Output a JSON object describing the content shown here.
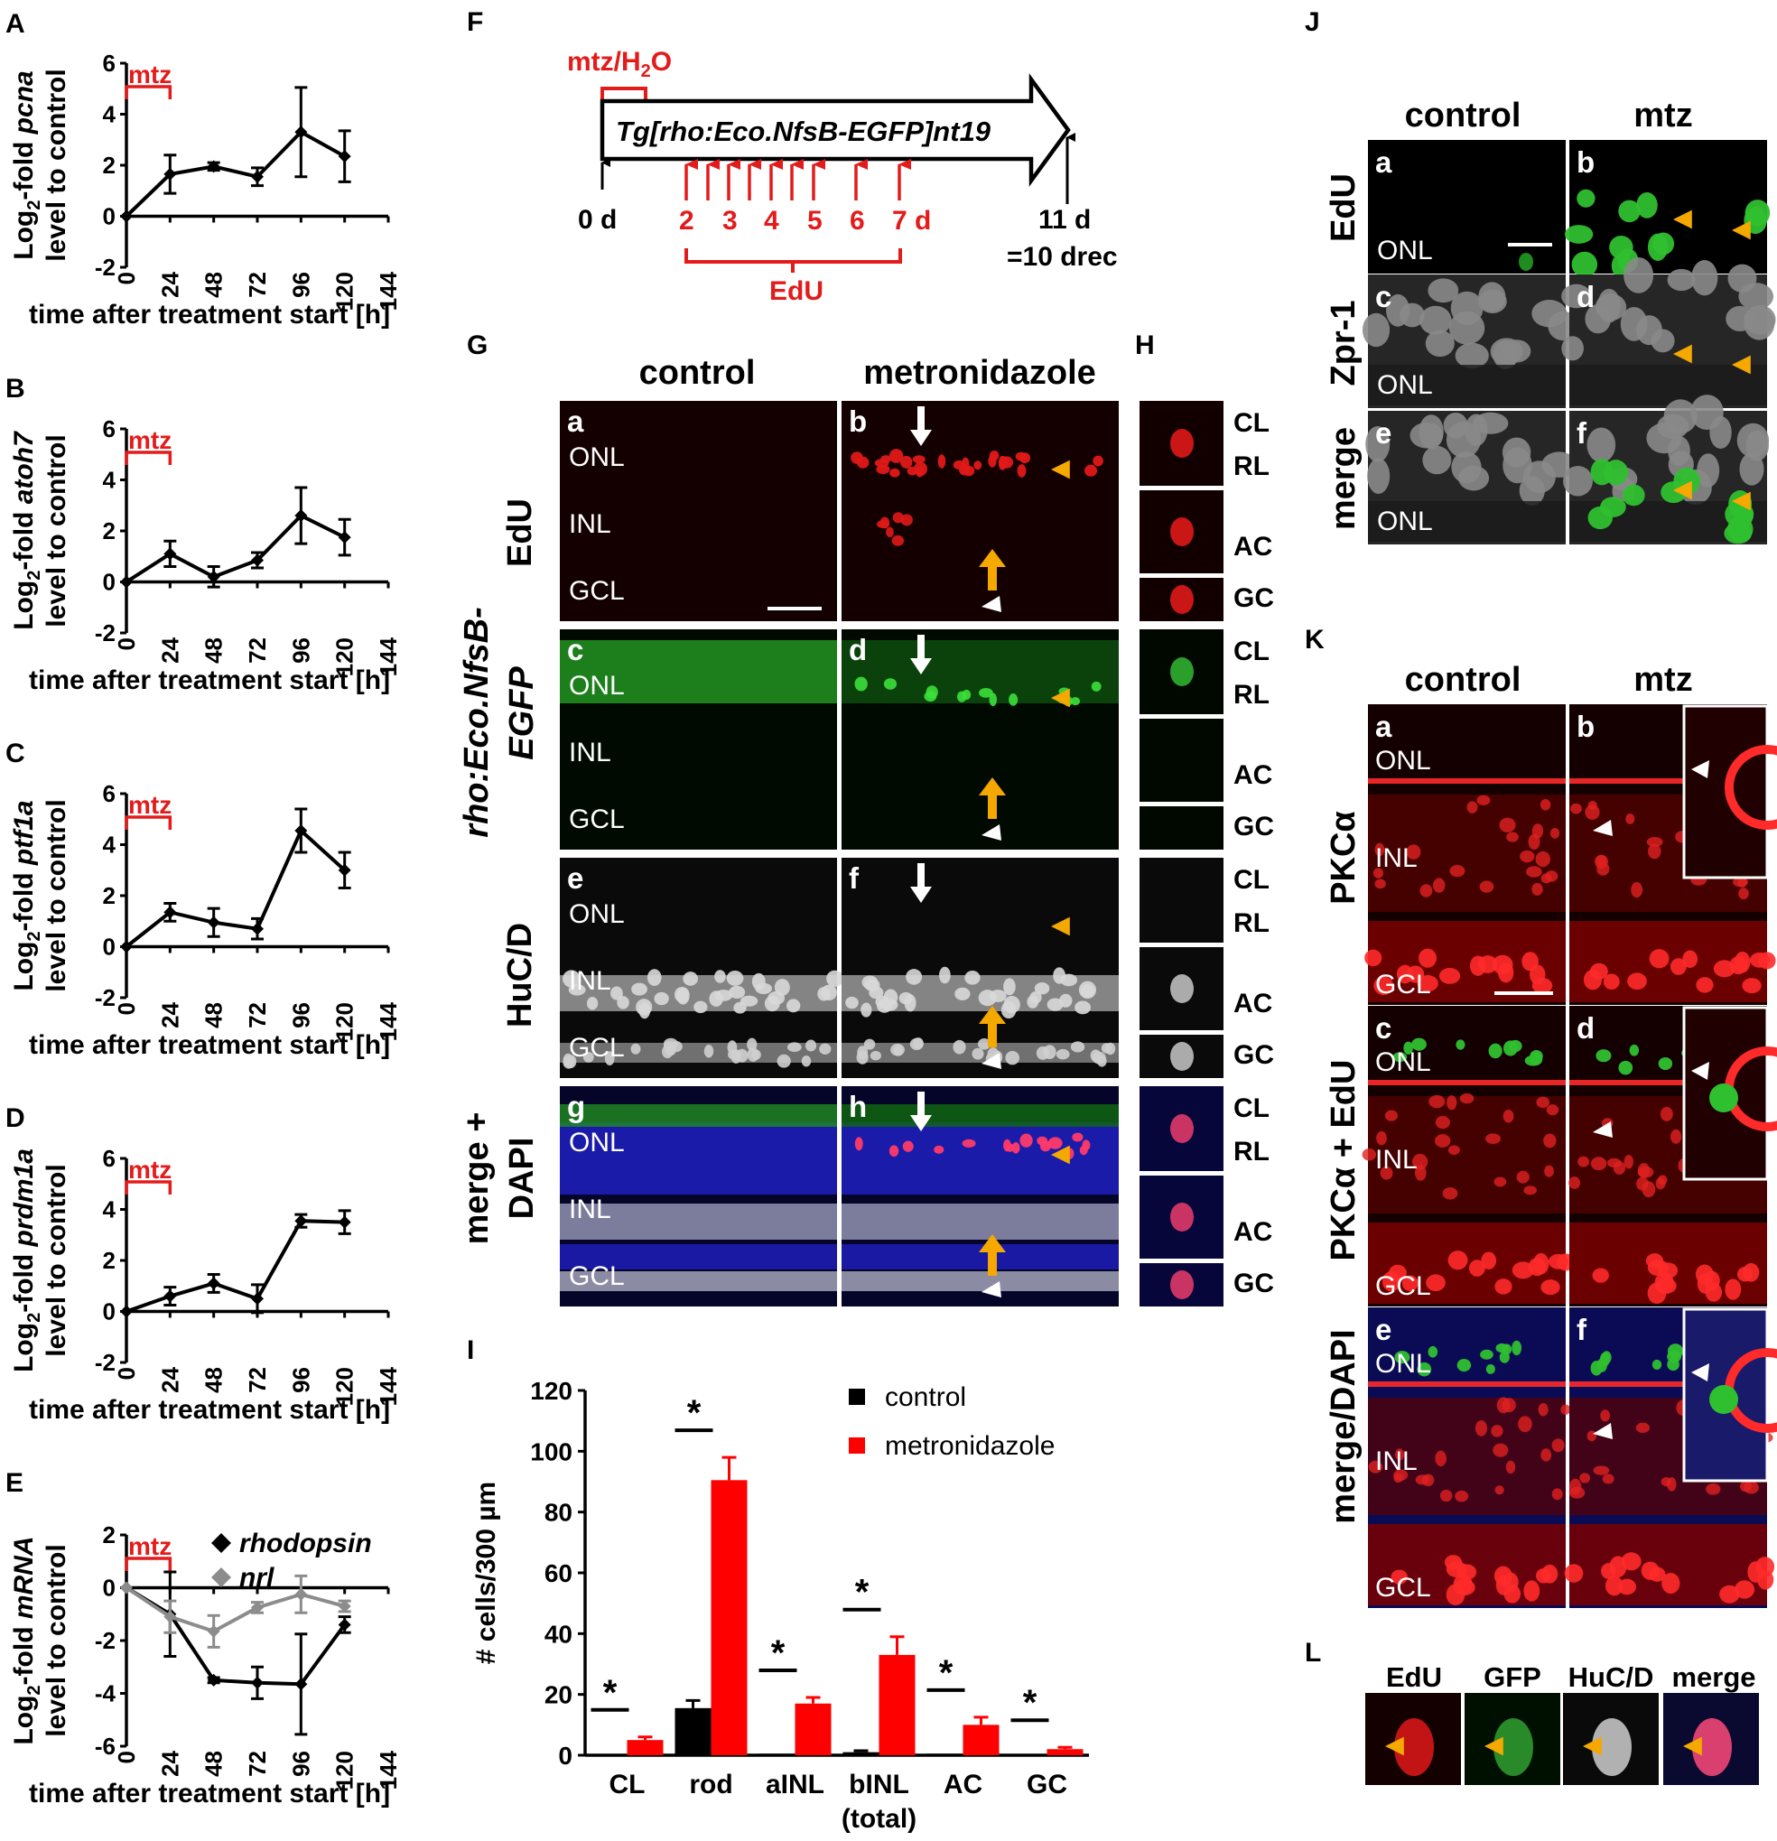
{
  "panel_letters": {
    "A": "A",
    "B": "B",
    "C": "C",
    "D": "D",
    "E": "E",
    "F": "F",
    "G": "G",
    "H": "H",
    "I": "I",
    "J": "J",
    "K": "K",
    "L": "L"
  },
  "line_common": {
    "xlabel": "time after treatment start [h]",
    "ylabel_prefix": "Log",
    "ylabel_sub": "2",
    "ylabel_suffix_pre": "-fold ",
    "ylabel_line2": "level to control",
    "treatment_label": "mtz",
    "x_ticks": [
      "0",
      "24",
      "48",
      "72",
      "96",
      "120",
      "144"
    ]
  },
  "chart_data": [
    {
      "id": "A",
      "type": "line",
      "gene": "pcna",
      "x": [
        0,
        24,
        48,
        72,
        96,
        120
      ],
      "series": [
        {
          "values": [
            0,
            1.65,
            1.95,
            1.55,
            3.3,
            2.35
          ],
          "err": [
            0,
            0.75,
            0.15,
            0.35,
            1.75,
            1.0
          ],
          "color": "#000000"
        }
      ],
      "ylim": [
        -2,
        6
      ],
      "y_ticks": [
        "-2",
        "0",
        "2",
        "4",
        "6"
      ],
      "xlim": [
        0,
        144
      ]
    },
    {
      "id": "B",
      "type": "line",
      "gene": "atoh7",
      "x": [
        0,
        24,
        48,
        72,
        96,
        120
      ],
      "series": [
        {
          "values": [
            0,
            1.1,
            0.2,
            0.85,
            2.6,
            1.75
          ],
          "err": [
            0,
            0.5,
            0.4,
            0.3,
            1.1,
            0.7
          ],
          "color": "#000000"
        }
      ],
      "ylim": [
        -2,
        6
      ],
      "y_ticks": [
        "-2",
        "0",
        "2",
        "4",
        "6"
      ],
      "xlim": [
        0,
        144
      ]
    },
    {
      "id": "C",
      "type": "line",
      "gene": "ptf1a",
      "x": [
        0,
        24,
        48,
        72,
        96,
        120
      ],
      "series": [
        {
          "values": [
            0,
            1.35,
            0.95,
            0.7,
            4.55,
            3.0
          ],
          "err": [
            0,
            0.35,
            0.55,
            0.4,
            0.85,
            0.7
          ],
          "color": "#000000"
        }
      ],
      "ylim": [
        -2,
        6
      ],
      "y_ticks": [
        "-2",
        "0",
        "2",
        "4",
        "6"
      ],
      "xlim": [
        0,
        144
      ]
    },
    {
      "id": "D",
      "type": "line",
      "gene": "prdm1a",
      "x": [
        0,
        24,
        48,
        72,
        96,
        120
      ],
      "series": [
        {
          "values": [
            0,
            0.6,
            1.1,
            0.5,
            3.55,
            3.5
          ],
          "err": [
            0,
            0.35,
            0.35,
            0.55,
            0.25,
            0.45
          ],
          "color": "#000000"
        }
      ],
      "ylim": [
        -2,
        6
      ],
      "y_ticks": [
        "-2",
        "0",
        "2",
        "4",
        "6"
      ],
      "xlim": [
        0,
        144
      ]
    },
    {
      "id": "E",
      "type": "line",
      "gene": "mRNA",
      "x": [
        0,
        24,
        48,
        72,
        96,
        120
      ],
      "series": [
        {
          "name": "rhodopsin",
          "values": [
            0,
            -1.0,
            -3.5,
            -3.6,
            -3.65,
            -1.4
          ],
          "err": [
            0,
            1.6,
            0.1,
            0.6,
            1.9,
            0.3
          ],
          "color": "#000000"
        },
        {
          "name": "nrl",
          "values": [
            0,
            -1.1,
            -1.65,
            -0.75,
            -0.25,
            -0.7
          ],
          "err": [
            0,
            0.6,
            0.6,
            0.2,
            0.7,
            0.2
          ],
          "color": "#8c8c8c"
        }
      ],
      "ylim": [
        -6,
        2
      ],
      "y_ticks": [
        "-6",
        "-4",
        "-2",
        "0",
        "2"
      ],
      "xlim": [
        0,
        144
      ]
    },
    {
      "id": "I",
      "type": "bar",
      "categories": [
        "CL",
        "rod",
        "aINL",
        "bINL",
        "AC",
        "GC"
      ],
      "category_sub": [
        "",
        "",
        "",
        "(total)",
        "",
        ""
      ],
      "series": [
        {
          "name": "control",
          "values": [
            0,
            15.5,
            0.5,
            1,
            0.5,
            0
          ],
          "err": [
            0,
            2.5,
            0,
            0.5,
            0,
            0
          ],
          "color": "#000000"
        },
        {
          "name": "metronidazole",
          "values": [
            5,
            90.5,
            17,
            33,
            10,
            2
          ],
          "err": [
            1,
            7.5,
            2,
            6,
            2.5,
            0.6
          ],
          "color": "#ff0000"
        }
      ],
      "significant": [
        "*",
        "*",
        "*",
        "*",
        "*",
        "*"
      ],
      "ylabel": "# cells/300 µm",
      "ylim": [
        0,
        120
      ],
      "y_ticks": [
        "0",
        "20",
        "40",
        "60",
        "80",
        "100",
        "120"
      ]
    }
  ],
  "timeline": {
    "treatment": "mtz/H",
    "treatment_sub": "2",
    "treatment_end": "O",
    "construct": "Tg[rho:Eco.NfsB-EGFP]nt19",
    "start": "0 d",
    "edu_days": [
      "2",
      "3",
      "4",
      "5",
      "6",
      "7 d"
    ],
    "edu_label": "EdU",
    "end_day": "11 d",
    "end_note": "=10 drec"
  },
  "panel_g": {
    "col_control": "control",
    "col_mtz": "metronidazole",
    "side_label_a": "rho:Eco.NfsB-",
    "side_label_b": "EGFP",
    "rows": [
      {
        "label": "EdU",
        "left": "a",
        "right": "b"
      },
      {
        "label": "",
        "left": "c",
        "right": "d"
      },
      {
        "label": "HuC/D",
        "left": "e",
        "right": "f"
      },
      {
        "label_a": "merge +",
        "label_b": "DAPI",
        "left": "g",
        "right": "h"
      }
    ],
    "layers": [
      "ONL",
      "INL",
      "GCL"
    ]
  },
  "panel_h": {
    "labels": [
      "CL",
      "RL",
      "AC",
      "GC"
    ]
  },
  "panel_j": {
    "col_control": "control",
    "col_mtz": "mtz",
    "rows": [
      {
        "label": "EdU",
        "left": "a",
        "right": "b"
      },
      {
        "label": "Zpr-1",
        "left": "c",
        "right": "d"
      },
      {
        "label": "merge",
        "left": "e",
        "right": "f"
      }
    ],
    "layer": "ONL"
  },
  "panel_k": {
    "col_control": "control",
    "col_mtz": "mtz",
    "rows": [
      {
        "label": "PKCα",
        "left": "a",
        "right": "b"
      },
      {
        "label": "PKCα + EdU",
        "left": "c",
        "right": "d"
      },
      {
        "label": "merge/DAPI",
        "left": "e",
        "right": "f"
      }
    ],
    "layers": [
      "ONL",
      "INL",
      "GCL"
    ]
  },
  "panel_l": {
    "headers": [
      "EdU",
      "GFP",
      "HuC/D",
      "merge"
    ]
  },
  "colors": {
    "red": "#e31b1b",
    "edu_red": "#e01818",
    "gfp_green": "#22c022",
    "dapi_blue": "#1c1cb0",
    "arrow_yellow": "#f5a800"
  }
}
